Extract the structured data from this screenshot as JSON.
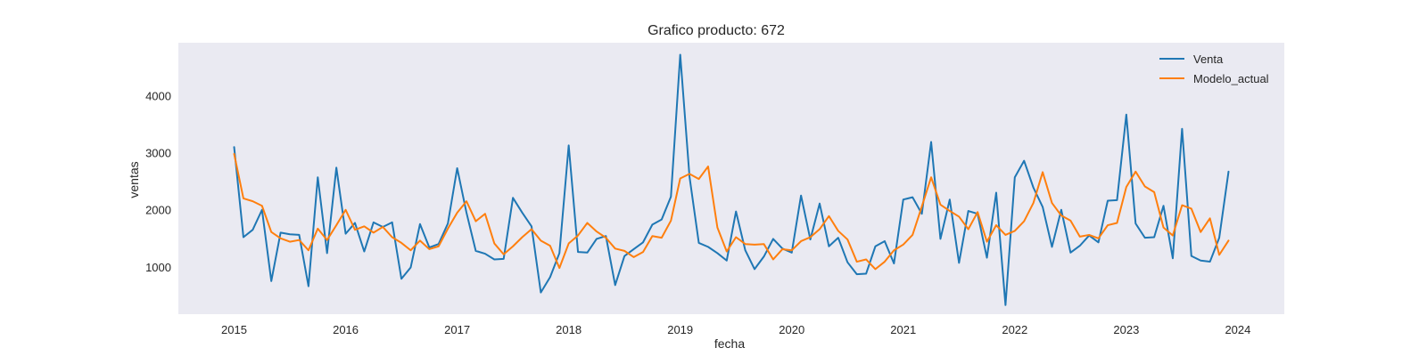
{
  "chart_data": {
    "type": "line",
    "title": "Grafico producto: 672",
    "xlabel": "fecha",
    "ylabel": "ventas",
    "x_start": "2015-01",
    "x_frequency": "monthly",
    "xlim": [
      "2014-07",
      "2024-06"
    ],
    "ylim": [
      170,
      4930
    ],
    "x_ticks": [
      "2015",
      "2016",
      "2017",
      "2018",
      "2019",
      "2020",
      "2021",
      "2022",
      "2023",
      "2024"
    ],
    "y_ticks": [
      1000,
      2000,
      3000,
      4000
    ],
    "grid": false,
    "legend": "top-right",
    "background": "#eaeaf2",
    "series": [
      {
        "name": "Venta",
        "color": "#1f77b4",
        "values": [
          3100,
          1520,
          1650,
          2000,
          750,
          1600,
          1570,
          1560,
          660,
          2570,
          1240,
          2740,
          1580,
          1770,
          1270,
          1780,
          1700,
          1780,
          790,
          990,
          1750,
          1340,
          1400,
          1760,
          2730,
          1950,
          1280,
          1230,
          1130,
          1140,
          2210,
          1950,
          1710,
          550,
          820,
          1240,
          3130,
          1260,
          1250,
          1490,
          1540,
          680,
          1190,
          1310,
          1430,
          1740,
          1830,
          2230,
          4720,
          2580,
          1420,
          1350,
          1240,
          1110,
          1970,
          1290,
          960,
          1180,
          1490,
          1320,
          1250,
          2250,
          1480,
          2110,
          1360,
          1510,
          1080,
          870,
          880,
          1360,
          1450,
          1060,
          2180,
          2220,
          1930,
          3190,
          1490,
          2180,
          1070,
          1980,
          1930,
          1160,
          2300,
          330,
          2570,
          2860,
          2390,
          2050,
          1350,
          2000,
          1250,
          1370,
          1550,
          1430,
          2160,
          2170,
          3670,
          1760,
          1510,
          1520,
          2070,
          1150,
          3420,
          1190,
          1110,
          1090,
          1510,
          2670
        ]
      },
      {
        "name": "Modelo_actual",
        "color": "#ff7f0e",
        "values": [
          2980,
          2200,
          2150,
          2070,
          1610,
          1500,
          1440,
          1470,
          1290,
          1670,
          1470,
          1730,
          2000,
          1650,
          1710,
          1600,
          1700,
          1520,
          1420,
          1290,
          1460,
          1310,
          1360,
          1670,
          1950,
          2150,
          1800,
          1930,
          1410,
          1220,
          1360,
          1520,
          1660,
          1460,
          1370,
          980,
          1410,
          1550,
          1770,
          1620,
          1510,
          1320,
          1280,
          1170,
          1260,
          1540,
          1510,
          1810,
          2550,
          2630,
          2540,
          2760,
          1690,
          1270,
          1520,
          1400,
          1390,
          1400,
          1130,
          1310,
          1290,
          1450,
          1520,
          1660,
          1890,
          1630,
          1480,
          1090,
          1130,
          960,
          1090,
          1290,
          1390,
          1560,
          2060,
          2570,
          2090,
          1980,
          1880,
          1660,
          1960,
          1440,
          1730,
          1560,
          1630,
          1800,
          2120,
          2660,
          2120,
          1900,
          1810,
          1530,
          1560,
          1500,
          1730,
          1770,
          2400,
          2670,
          2410,
          2310,
          1690,
          1550,
          2080,
          2020,
          1610,
          1850,
          1210,
          1460
        ]
      }
    ]
  }
}
